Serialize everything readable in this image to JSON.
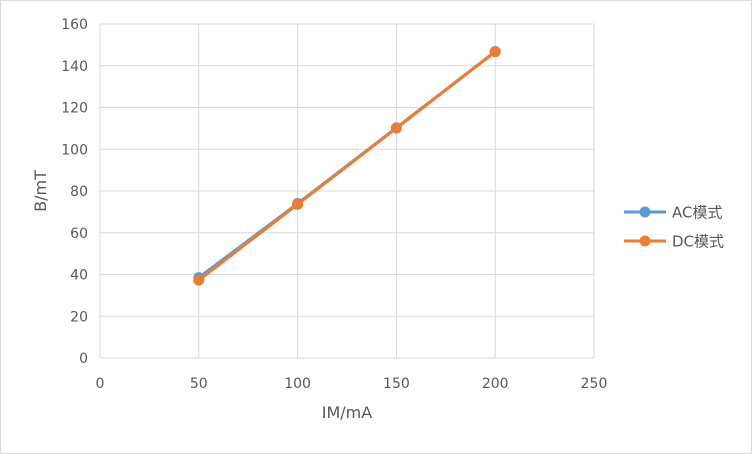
{
  "chart_data": {
    "type": "scatter",
    "title": "",
    "xlabel": "IM/mA",
    "ylabel": "B/mT",
    "xlim": [
      0,
      250
    ],
    "ylim": [
      0,
      160
    ],
    "xticks": [
      0,
      50,
      100,
      150,
      200,
      250
    ],
    "yticks": [
      0,
      20,
      40,
      60,
      80,
      100,
      120,
      140,
      160
    ],
    "grid": true,
    "legend_position": "right",
    "series": [
      {
        "name": "AC模式",
        "color": "#5b9bd5",
        "x": [
          50,
          100,
          150,
          200
        ],
        "y": [
          38.5,
          74,
          110.3,
          146.8
        ]
      },
      {
        "name": "DC模式",
        "color": "#ed7d31",
        "x": [
          50,
          100,
          150,
          200
        ],
        "y": [
          37.3,
          73.6,
          110.1,
          146.7
        ]
      }
    ]
  }
}
